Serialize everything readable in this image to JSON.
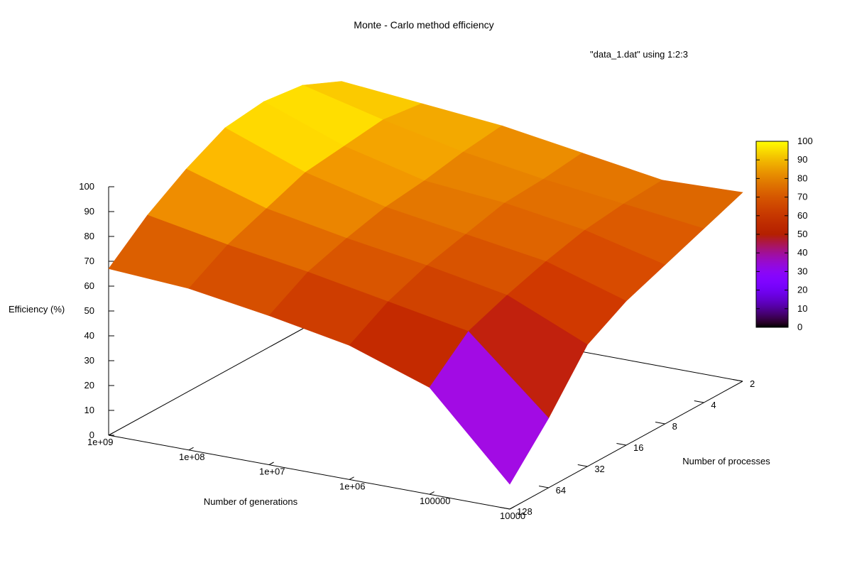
{
  "chart_data": {
    "type": "surface3d",
    "title": "Monte - Carlo method efficiency",
    "legend": "\"data_1.dat\" using 1:2:3",
    "xlabel": "Number of generations",
    "ylabel": "Number of processes",
    "zlabel": "Efficiency (%)",
    "x_ticks": [
      "1e+09",
      "1e+08",
      "1e+07",
      "1e+06",
      "100000",
      "10000"
    ],
    "y_ticks": [
      "2",
      "4",
      "8",
      "16",
      "32",
      "64",
      "128"
    ],
    "z_ticks": [
      "0",
      "10",
      "20",
      "30",
      "40",
      "50",
      "60",
      "70",
      "80",
      "90",
      "100"
    ],
    "zlim": [
      0,
      100
    ],
    "colorbar_ticks": [
      "0",
      "10",
      "20",
      "30",
      "40",
      "50",
      "60",
      "70",
      "80",
      "90",
      "100"
    ],
    "colorbar_range": [
      0,
      100
    ],
    "surface": {
      "generations": [
        1000000000,
        100000000,
        10000000,
        1000000,
        100000,
        10000
      ],
      "processes": [
        128,
        64,
        32,
        16,
        8,
        4,
        2
      ],
      "efficiency": [
        [
          67,
          80,
          90,
          98,
          100,
          98,
          91
        ],
        [
          65,
          74,
          80,
          86,
          88,
          90,
          88
        ],
        [
          60,
          69,
          74,
          78,
          80,
          83,
          85
        ],
        [
          54,
          63,
          69,
          73,
          77,
          78,
          80
        ],
        [
          43,
          57,
          63,
          68,
          72,
          74,
          75
        ],
        [
          10,
          28,
          49,
          58,
          64,
          70,
          76
        ]
      ]
    }
  }
}
